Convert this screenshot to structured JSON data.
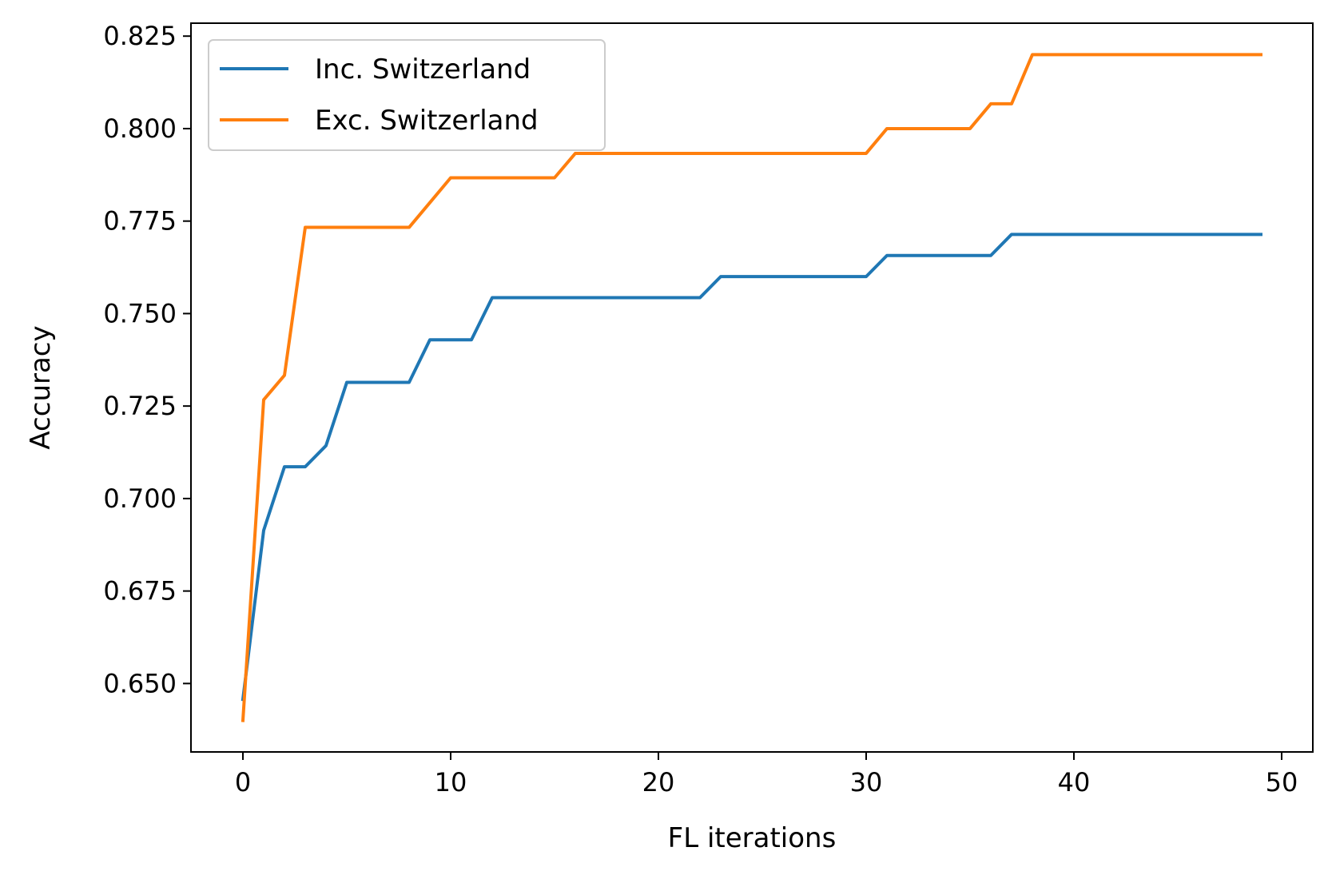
{
  "chart_data": {
    "type": "line",
    "xlabel": "FL iterations",
    "ylabel": "Accuracy",
    "xlim": [
      -2.5,
      51.5
    ],
    "ylim": [
      0.6315,
      0.8285
    ],
    "xticks": [
      0,
      10,
      20,
      30,
      40,
      50
    ],
    "xtick_labels": [
      "0",
      "10",
      "20",
      "30",
      "40",
      "50"
    ],
    "yticks": [
      0.65,
      0.675,
      0.7,
      0.725,
      0.75,
      0.775,
      0.8,
      0.825
    ],
    "ytick_labels": [
      "0.650",
      "0.675",
      "0.700",
      "0.725",
      "0.750",
      "0.775",
      "0.800",
      "0.825"
    ],
    "grid": false,
    "legend_position": "upper-left",
    "x": [
      0,
      1,
      2,
      3,
      4,
      5,
      6,
      7,
      8,
      9,
      10,
      11,
      12,
      13,
      14,
      15,
      16,
      17,
      18,
      19,
      20,
      21,
      22,
      23,
      24,
      25,
      26,
      27,
      28,
      29,
      30,
      31,
      32,
      33,
      34,
      35,
      36,
      37,
      38,
      39,
      40,
      41,
      42,
      43,
      44,
      45,
      46,
      47,
      48,
      49
    ],
    "series": [
      {
        "name": "Inc. Switzerland",
        "color": "#1f77b4",
        "values": [
          0.6457,
          0.6914,
          0.7086,
          0.7086,
          0.7143,
          0.7314,
          0.7314,
          0.7314,
          0.7314,
          0.7429,
          0.7429,
          0.7429,
          0.7543,
          0.7543,
          0.7543,
          0.7543,
          0.7543,
          0.7543,
          0.7543,
          0.7543,
          0.7543,
          0.7543,
          0.7543,
          0.76,
          0.76,
          0.76,
          0.76,
          0.76,
          0.76,
          0.76,
          0.76,
          0.7657,
          0.7657,
          0.7657,
          0.7657,
          0.7657,
          0.7657,
          0.7714,
          0.7714,
          0.7714,
          0.7714,
          0.7714,
          0.7714,
          0.7714,
          0.7714,
          0.7714,
          0.7714,
          0.7714,
          0.7714,
          0.7714
        ]
      },
      {
        "name": "Exc. Switzerland",
        "color": "#ff7f0e",
        "values": [
          0.64,
          0.7267,
          0.7333,
          0.7733,
          0.7733,
          0.7733,
          0.7733,
          0.7733,
          0.7733,
          0.78,
          0.7867,
          0.7867,
          0.7867,
          0.7867,
          0.7867,
          0.7867,
          0.7933,
          0.7933,
          0.7933,
          0.7933,
          0.7933,
          0.7933,
          0.7933,
          0.7933,
          0.7933,
          0.7933,
          0.7933,
          0.7933,
          0.7933,
          0.7933,
          0.7933,
          0.8,
          0.8,
          0.8,
          0.8,
          0.8,
          0.8067,
          0.8067,
          0.82,
          0.82,
          0.82,
          0.82,
          0.82,
          0.82,
          0.82,
          0.82,
          0.82,
          0.82,
          0.82,
          0.82
        ]
      }
    ]
  }
}
